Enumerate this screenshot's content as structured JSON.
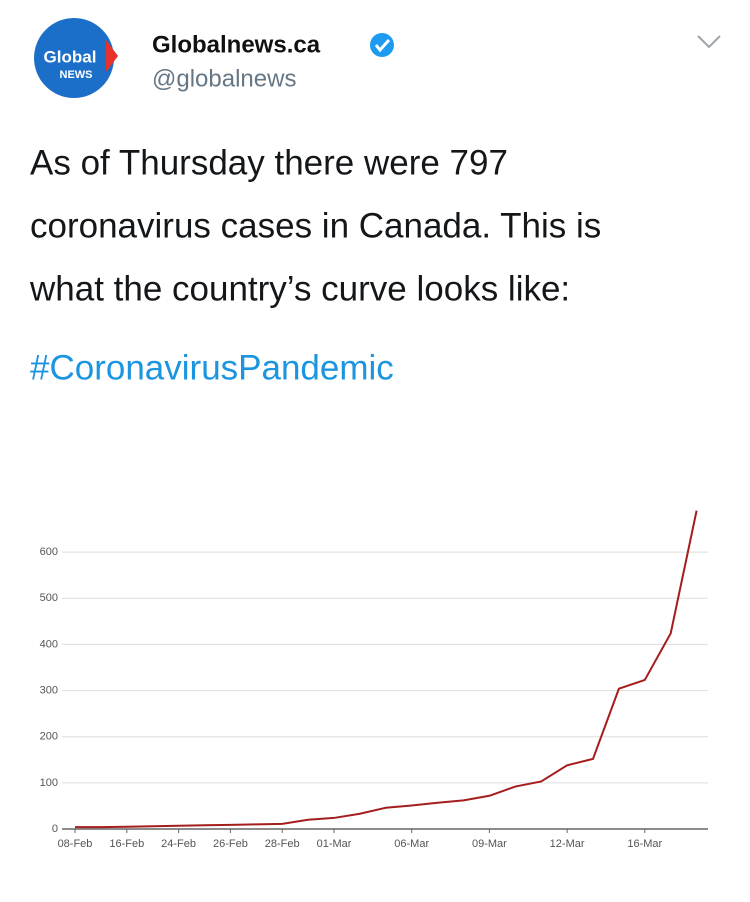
{
  "tweet": {
    "logo": {
      "top": "Global",
      "bottom": "NEWS"
    },
    "name": "Globalnews.ca",
    "handle": "@globalnews",
    "text_lines": [
      "As of Thursday there were 797",
      "coronavirus cases in Canada. This is",
      "what the country’s curve looks like:"
    ],
    "hashtag": "#CoronavirusPandemic"
  },
  "chart_data": {
    "type": "line",
    "categories": [
      "08-Feb",
      null,
      "16-Feb",
      null,
      "24-Feb",
      null,
      "26-Feb",
      null,
      "28-Feb",
      null,
      "01-Mar",
      null,
      null,
      "06-Mar",
      null,
      null,
      "09-Mar",
      null,
      null,
      "12-Mar",
      null,
      null,
      "16-Mar",
      null,
      null
    ],
    "series": [
      {
        "name": "cases",
        "color": "#a51d1d",
        "values": [
          4,
          4,
          5,
          6,
          7,
          8,
          9,
          10,
          11,
          20,
          24,
          33,
          46,
          51,
          57,
          62,
          72,
          92,
          103,
          138,
          152,
          304,
          323,
          424,
          690
        ]
      }
    ],
    "ylim": [
      0,
      700
    ],
    "yticks": [
      0,
      100,
      200,
      300,
      400,
      500,
      600
    ],
    "grid": true
  }
}
